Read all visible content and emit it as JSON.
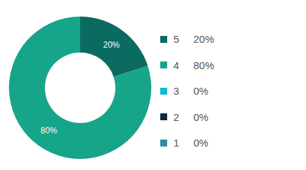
{
  "chart_data": {
    "type": "pie",
    "categories": [
      "5",
      "4",
      "3",
      "2",
      "1"
    ],
    "values": [
      20,
      80,
      0,
      0,
      0
    ],
    "value_labels": [
      "20%",
      "80%",
      "0%",
      "0%",
      "0%"
    ],
    "colors": [
      "#0b6b60",
      "#17a589",
      "#17b8d4",
      "#0c2b3a",
      "#2a8ea3"
    ],
    "data_labels": true,
    "legend": "right"
  }
}
